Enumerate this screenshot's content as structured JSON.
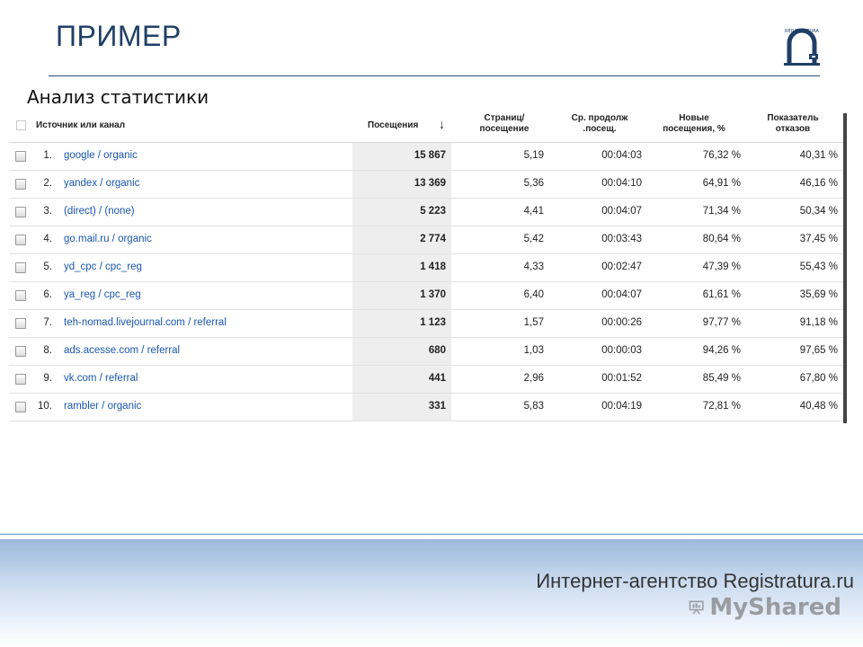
{
  "slide": {
    "title": "ПРИМЕР",
    "subtitle": "Анализ статистики"
  },
  "logo": {
    "text": "REGISTRATURA",
    "icon": "registratura-logo-icon"
  },
  "report": {
    "headers": {
      "source": "Источник или канал",
      "visits": "Посещения",
      "sort_icon": "arrow-down-icon",
      "pages_line1": "Страниц/",
      "pages_line2": "посещение",
      "duration_line1": "Ср. продолж",
      "duration_line2": ".посещ.",
      "new_line1": "Новые",
      "new_line2": "посещения, %",
      "bounce_line1": "Показатель",
      "bounce_line2": "отказов"
    },
    "rows": [
      {
        "num": "1.",
        "source": "google / organic",
        "visits": "15 867",
        "pages": "5,19",
        "duration": "00:04:03",
        "new": "76,32 %",
        "bounce": "40,31 %"
      },
      {
        "num": "2.",
        "source": "yandex / organic",
        "visits": "13 369",
        "pages": "5,36",
        "duration": "00:04:10",
        "new": "64,91 %",
        "bounce": "46,16 %"
      },
      {
        "num": "3.",
        "source": "(direct) / (none)",
        "visits": "5 223",
        "pages": "4,41",
        "duration": "00:04:07",
        "new": "71,34 %",
        "bounce": "50,34 %"
      },
      {
        "num": "4.",
        "source": "go.mail.ru / organic",
        "visits": "2 774",
        "pages": "5,42",
        "duration": "00:03:43",
        "new": "80,64 %",
        "bounce": "37,45 %"
      },
      {
        "num": "5.",
        "source": "yd_cpc / cpc_reg",
        "visits": "1 418",
        "pages": "4,33",
        "duration": "00:02:47",
        "new": "47,39 %",
        "bounce": "55,43 %"
      },
      {
        "num": "6.",
        "source": "ya_reg / cpc_reg",
        "visits": "1 370",
        "pages": "6,40",
        "duration": "00:04:07",
        "new": "61,61 %",
        "bounce": "35,69 %"
      },
      {
        "num": "7.",
        "source": "teh-nomad.livejournal.com / referral",
        "visits": "1 123",
        "pages": "1,57",
        "duration": "00:00:26",
        "new": "97,77 %",
        "bounce": "91,18 %"
      },
      {
        "num": "8.",
        "source": "ads.acesse.com / referral",
        "visits": "680",
        "pages": "1,03",
        "duration": "00:00:03",
        "new": "94,26 %",
        "bounce": "97,65 %"
      },
      {
        "num": "9.",
        "source": "vk.com / referral",
        "visits": "441",
        "pages": "2,96",
        "duration": "00:01:52",
        "new": "85,49 %",
        "bounce": "67,80 %"
      },
      {
        "num": "10.",
        "source": "rambler / organic",
        "visits": "331",
        "pages": "5,83",
        "duration": "00:04:19",
        "new": "72,81 %",
        "bounce": "40,48 %"
      }
    ]
  },
  "footer": {
    "text": "Интернет-агентство Registratura.ru",
    "watermark": "MyShared",
    "watermark_icon": "presentation-board-icon"
  }
}
